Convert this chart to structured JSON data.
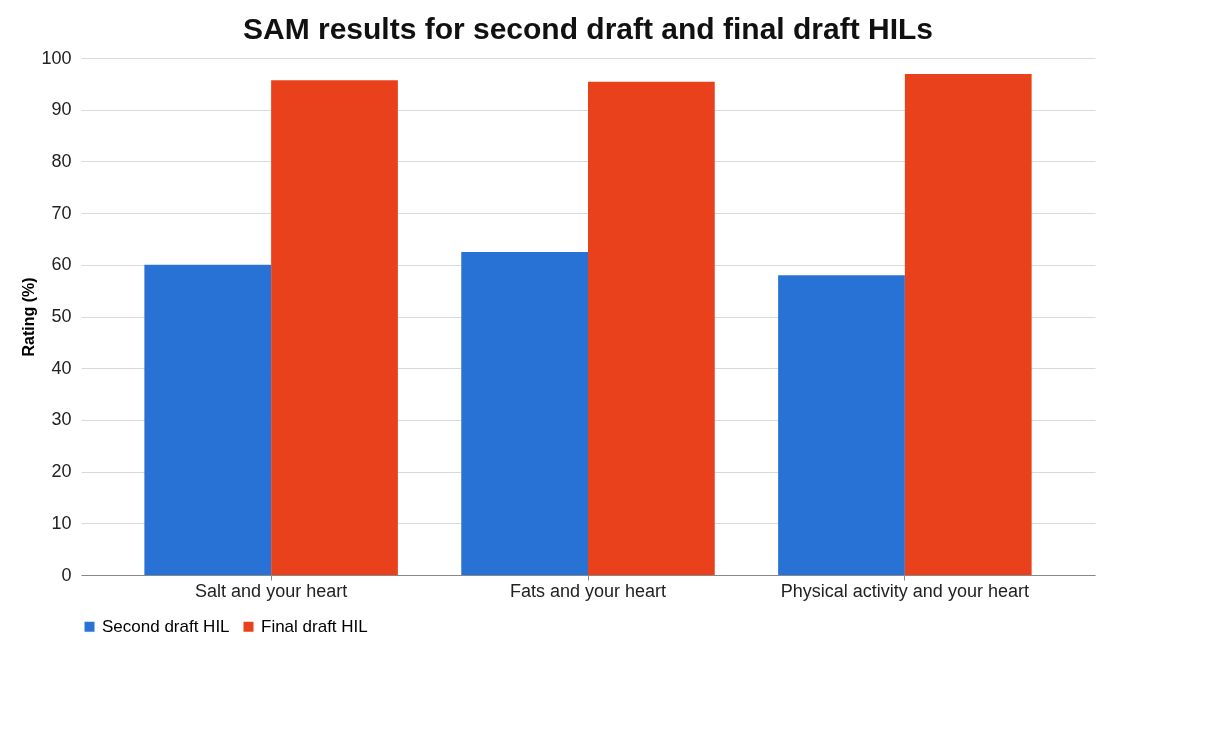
{
  "chart_data": {
    "type": "bar",
    "title": "SAM results for second draft and final draft HILs",
    "ylabel": "Rating (%)",
    "categories": [
      "Salt and your heart",
      "Fats and your heart",
      "Physical activity and your heart"
    ],
    "series": [
      {
        "name": "Second draft HIL",
        "color": "#2872d6",
        "values": [
          60,
          62.5,
          58
        ]
      },
      {
        "name": "Final draft HIL",
        "color": "#e8411c",
        "values": [
          95.7,
          95.4,
          96.9
        ]
      }
    ],
    "ylim": [
      0,
      100
    ],
    "yticks": [
      0,
      10,
      20,
      30,
      40,
      50,
      60,
      70,
      80,
      90,
      100
    ],
    "grid": "y",
    "legend": "bottom"
  }
}
